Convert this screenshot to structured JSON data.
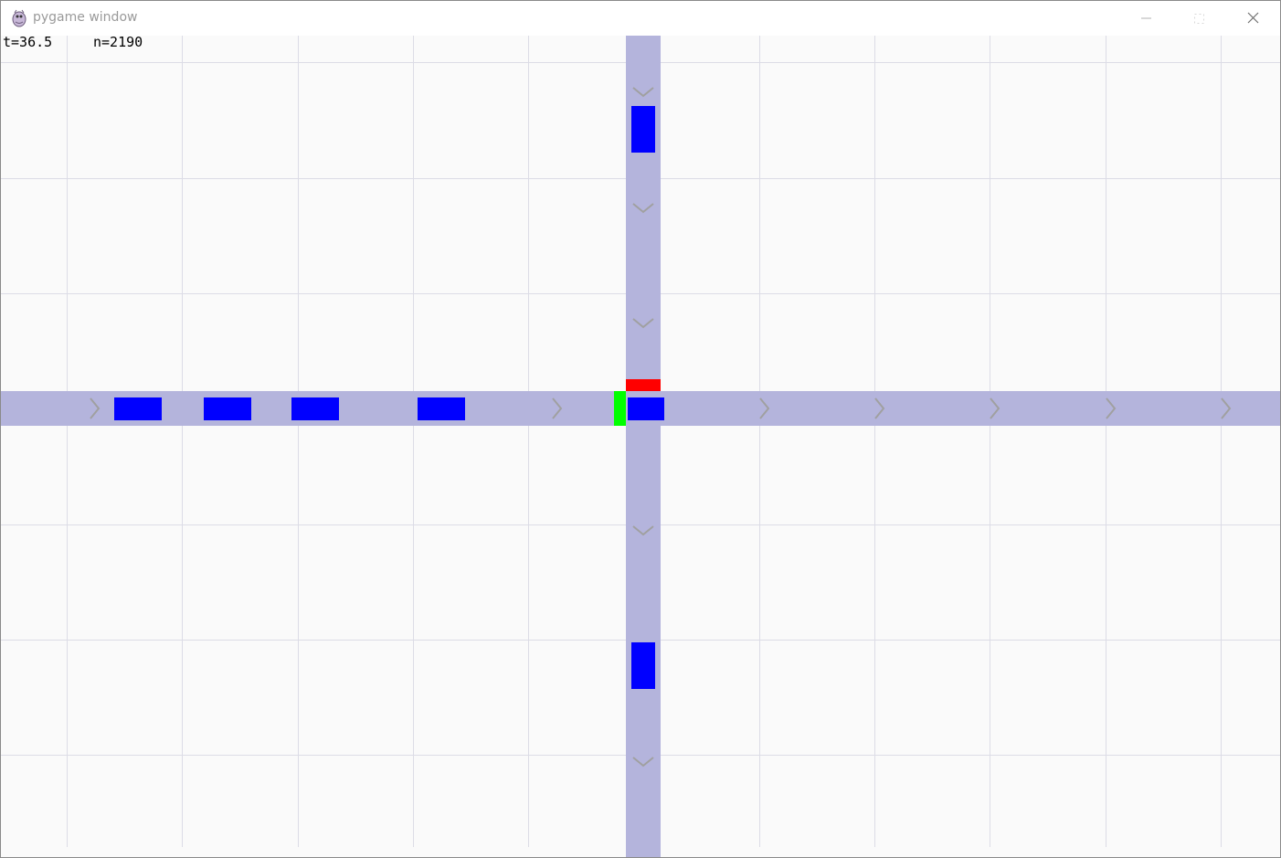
{
  "window": {
    "title": "pygame window",
    "icon": "pygame-snake-icon",
    "controls": [
      "minimize-icon",
      "maximize-icon",
      "close-icon"
    ]
  },
  "hud": {
    "time_label": "t=36.5",
    "count_label": "n=2190"
  },
  "colors": {
    "background": "#fafafa",
    "grid": "#dcdce6",
    "road": "#b4b4dc",
    "arrow": "#a0a0a0",
    "vehicle": "#0000ff",
    "signal_green": "#00ff00",
    "signal_red": "#ff0000"
  },
  "roads": [
    {
      "name": "horizontal-road",
      "direction": "east"
    },
    {
      "name": "vertical-road",
      "direction": "south"
    }
  ],
  "signals": [
    {
      "name": "west-approach-signal",
      "state": "green"
    },
    {
      "name": "north-approach-signal",
      "state": "red"
    }
  ],
  "vehicles": [
    {
      "name": "vehicle-east-1",
      "road": "horizontal-road"
    },
    {
      "name": "vehicle-east-2",
      "road": "horizontal-road"
    },
    {
      "name": "vehicle-east-3",
      "road": "horizontal-road"
    },
    {
      "name": "vehicle-east-4",
      "road": "horizontal-road"
    },
    {
      "name": "vehicle-east-5",
      "road": "horizontal-road"
    },
    {
      "name": "vehicle-south-1",
      "road": "vertical-road"
    },
    {
      "name": "vehicle-south-2",
      "road": "vertical-road"
    }
  ]
}
